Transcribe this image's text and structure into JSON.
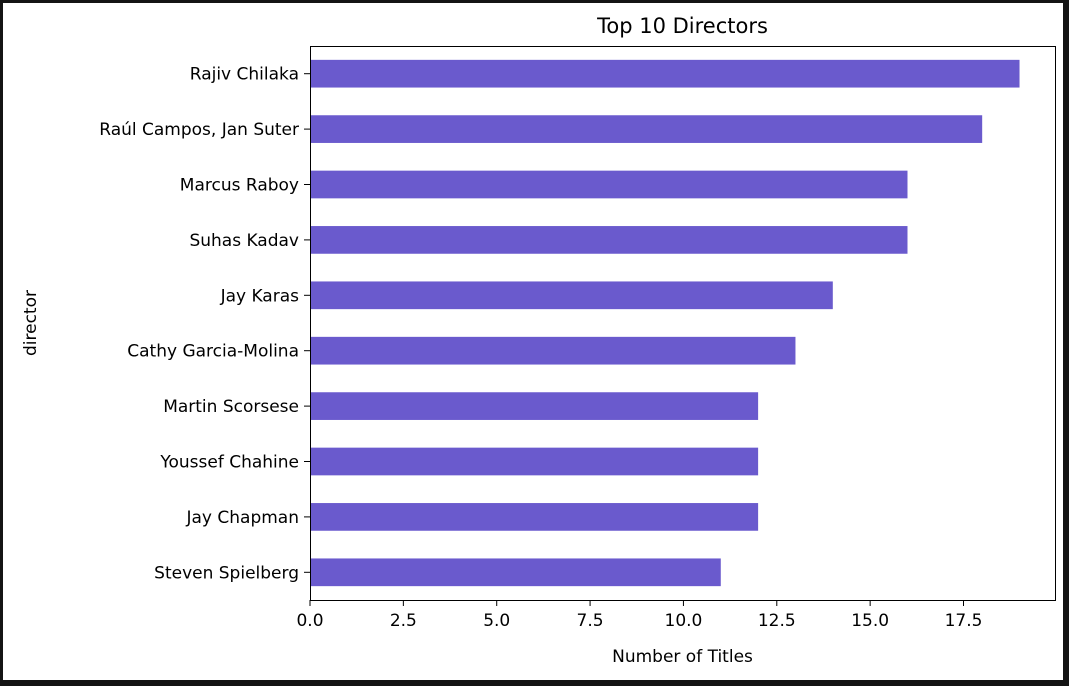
{
  "chart_data": {
    "type": "bar",
    "orientation": "horizontal",
    "title": "Top 10 Directors",
    "xlabel": "Number of Titles",
    "ylabel": "director",
    "categories": [
      "Rajiv Chilaka",
      "Raúl Campos, Jan Suter",
      "Marcus Raboy",
      "Suhas Kadav",
      "Jay Karas",
      "Cathy Garcia-Molina",
      "Martin Scorsese",
      "Youssef Chahine",
      "Jay Chapman",
      "Steven Spielberg"
    ],
    "values": [
      19,
      18,
      16,
      16,
      14,
      13,
      12,
      12,
      12,
      11
    ],
    "xlim": [
      0,
      19.95
    ],
    "xticks": [
      "0.0",
      "2.5",
      "5.0",
      "7.5",
      "10.0",
      "12.5",
      "15.0",
      "17.5"
    ],
    "grid": false,
    "legend": "none",
    "bar_color": "#6a5acd",
    "background": "#ffffff"
  }
}
